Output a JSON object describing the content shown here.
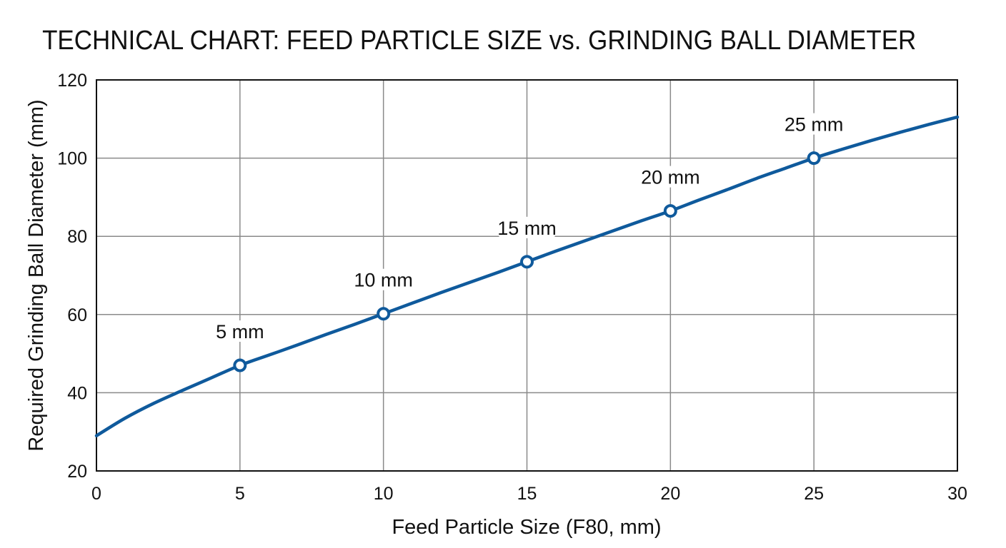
{
  "chart_data": {
    "type": "line",
    "title": "TECHNICAL CHART: FEED PARTICLE SIZE vs. GRINDING BALL DIAMETER",
    "xlabel": "Feed Particle Size (F80, mm)",
    "ylabel": "Required Grinding Ball Diameter (mm)",
    "xlim": [
      0,
      30
    ],
    "ylim": [
      20,
      120
    ],
    "xticks": [
      0,
      5,
      10,
      15,
      20,
      25,
      30
    ],
    "yticks": [
      20,
      40,
      60,
      80,
      100,
      120
    ],
    "grid": true,
    "series": [
      {
        "curve": [
          [
            0,
            29
          ],
          [
            1,
            33.5
          ],
          [
            2,
            37.3
          ],
          [
            3,
            40.6
          ],
          [
            4,
            43.8
          ],
          [
            5,
            47
          ],
          [
            6,
            49.6
          ],
          [
            7,
            52.2
          ],
          [
            8,
            54.9
          ],
          [
            9,
            57.5
          ],
          [
            10,
            60.2
          ],
          [
            11,
            62.9
          ],
          [
            12,
            65.6
          ],
          [
            13,
            68.2
          ],
          [
            14,
            70.8
          ],
          [
            15,
            73.5
          ],
          [
            16,
            76.2
          ],
          [
            17,
            78.8
          ],
          [
            18,
            81.4
          ],
          [
            19,
            84
          ],
          [
            20,
            86.5
          ],
          [
            21,
            89.3
          ],
          [
            22,
            92
          ],
          [
            23,
            94.8
          ],
          [
            24,
            97.4
          ],
          [
            25,
            100
          ],
          [
            26,
            102.3
          ],
          [
            27,
            104.5
          ],
          [
            28,
            106.6
          ],
          [
            29,
            108.6
          ],
          [
            30,
            110.5
          ]
        ],
        "points": [
          {
            "x": 5,
            "y": 47,
            "label": "5 mm"
          },
          {
            "x": 10,
            "y": 60.2,
            "label": "10 mm"
          },
          {
            "x": 15,
            "y": 73.5,
            "label": "15 mm"
          },
          {
            "x": 20,
            "y": 86.5,
            "label": "20 mm"
          },
          {
            "x": 25,
            "y": 100,
            "label": "25 mm"
          }
        ]
      }
    ],
    "colors": {
      "line": "#0f5a9c",
      "grid": "#8a8a8a",
      "axis": "#111111"
    }
  }
}
